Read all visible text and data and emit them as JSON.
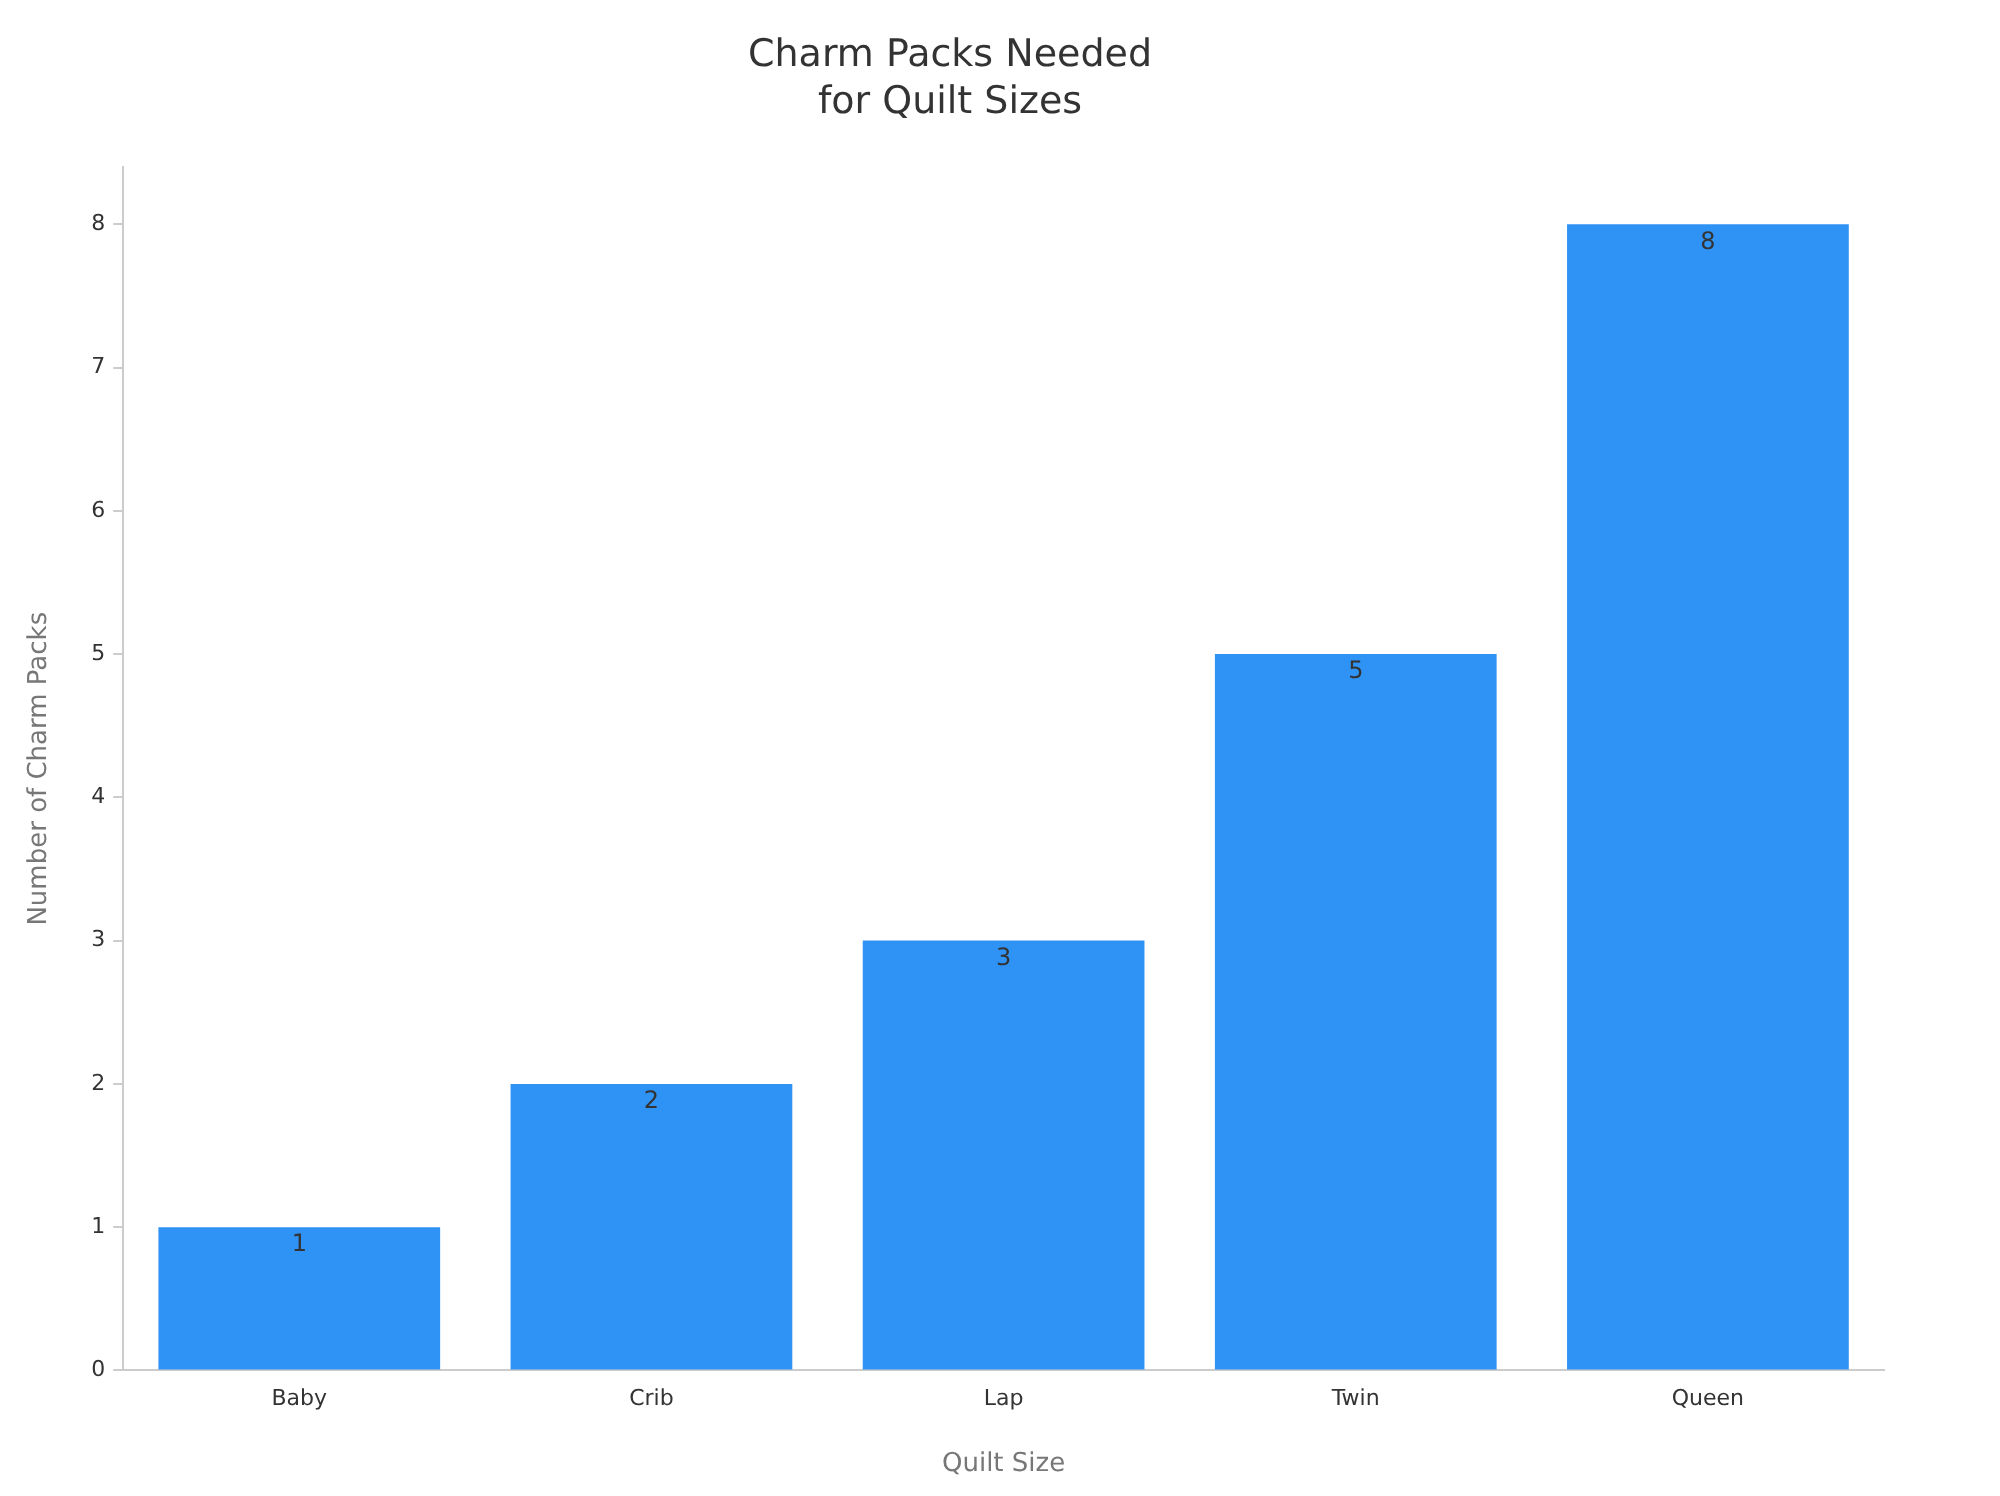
{
  "chart_data": {
    "type": "bar",
    "title": "Charm Packs Needed\nfor Quilt Sizes",
    "xlabel": "Quilt Size",
    "ylabel": "Number of Charm Packs",
    "categories": [
      "Baby",
      "Crib",
      "Lap",
      "Twin",
      "Queen"
    ],
    "values": [
      1,
      2,
      3,
      5,
      8
    ],
    "color": "#2f93f5",
    "ylim": [
      0,
      8.4
    ],
    "yticks": [
      0,
      1,
      2,
      3,
      4,
      5,
      6,
      7,
      8
    ],
    "grid": false,
    "legend": false,
    "data_labels": true
  }
}
